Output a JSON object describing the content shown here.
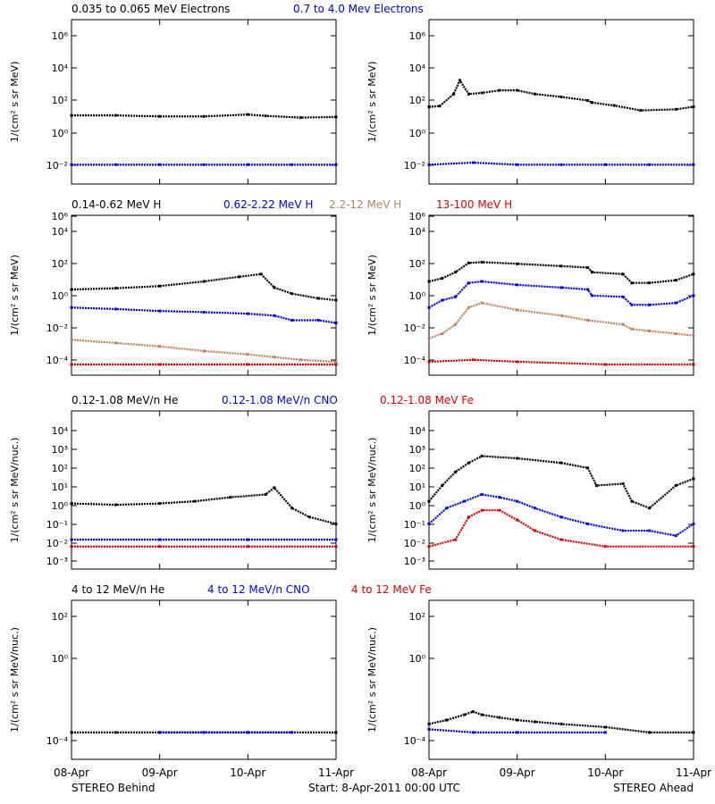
{
  "colors": {
    "black": "#000000",
    "blue": "#0000ee",
    "tan": "#c08060",
    "red": "#e00000"
  },
  "footer": {
    "left": "STEREO Behind",
    "center": "Start:  8-Apr-2011 00:00 UTC",
    "right": "STEREO Ahead",
    "xticks": [
      "08-Apr",
      "09-Apr",
      "10-Apr",
      "11-Apr"
    ]
  },
  "rows": [
    {
      "legend": [
        {
          "text": "0.035 to 0.065 MeV Electrons",
          "color": "black"
        },
        {
          "text": "0.7 to 4.0 Mev Electrons",
          "color": "blue"
        }
      ],
      "ylabel": "1/(cm² s sr MeV)",
      "ticks": [
        "10⁻²",
        "10⁰",
        "10²",
        "10⁴",
        "10⁶"
      ]
    },
    {
      "legend": [
        {
          "text": "0.14-0.62 MeV H",
          "color": "black"
        },
        {
          "text": "0.62-2.22 MeV H",
          "color": "blue"
        },
        {
          "text": "2.2-12 MeV H",
          "color": "tan"
        },
        {
          "text": "13-100 MeV H",
          "color": "red"
        }
      ],
      "ylabel": "1/(cm² s sr MeV)",
      "ticks": [
        "10⁻⁴",
        "10⁻²",
        "10⁰",
        "10²",
        "10⁴",
        "10⁶"
      ]
    },
    {
      "legend": [
        {
          "text": "0.12-1.08 MeV/n He",
          "color": "black"
        },
        {
          "text": "0.12-1.08 MeV/n CNO",
          "color": "blue"
        },
        {
          "text": "0.12-1.08 MeV Fe",
          "color": "red"
        }
      ],
      "ylabel": "1/(cm² s sr MeV/nuc.)",
      "ticks": [
        "10⁻³",
        "10⁻²",
        "10⁻¹",
        "10⁰",
        "10¹",
        "10²",
        "10³",
        "10⁴"
      ]
    },
    {
      "legend": [
        {
          "text": "4 to 12 MeV/n He",
          "color": "black"
        },
        {
          "text": "4 to 12 MeV/n CNO",
          "color": "blue"
        },
        {
          "text": "4 to 12 MeV Fe",
          "color": "red"
        }
      ],
      "ylabel": "1/(cm² s sr MeV/nuc.)",
      "ticks": [
        "10⁻⁴",
        "10⁰",
        "10²"
      ]
    }
  ],
  "chart_data": [
    {
      "type": "scatter",
      "panel": "electrons-behind",
      "xlim": [
        "2011-04-08",
        "2011-04-11"
      ],
      "ylim": [
        0.001,
        10000000
      ],
      "log": true,
      "series": [
        {
          "name": "0.035 to 0.065 MeV Electrons",
          "color": "black",
          "x": [
            0,
            0.5,
            1,
            1.5,
            2,
            2.2,
            2.6,
            3
          ],
          "y": [
            15,
            15,
            13,
            13,
            17,
            14,
            11,
            12
          ]
        },
        {
          "name": "0.7 to 4.0 Mev Electrons",
          "color": "blue",
          "x": [
            0,
            0.5,
            1,
            1.5,
            2,
            2.5,
            3
          ],
          "y": [
            0.015,
            0.015,
            0.015,
            0.015,
            0.015,
            0.015,
            0.015
          ]
        }
      ]
    },
    {
      "type": "scatter",
      "panel": "electrons-ahead",
      "xlim": [
        "2011-04-08",
        "2011-04-11"
      ],
      "ylim": [
        0.001,
        10000000
      ],
      "log": true,
      "series": [
        {
          "name": "0.035 to 0.065 MeV Electrons",
          "color": "black",
          "x": [
            0,
            0.12,
            0.28,
            0.35,
            0.45,
            0.6,
            0.8,
            1,
            1.2,
            1.5,
            1.8,
            1.85,
            2.1,
            2.4,
            2.8,
            3
          ],
          "y": [
            50,
            55,
            300,
            2000,
            300,
            350,
            500,
            500,
            300,
            200,
            120,
            90,
            60,
            30,
            35,
            50
          ]
        },
        {
          "name": "0.7 to 4.0 Mev Electrons",
          "color": "blue",
          "x": [
            0,
            0.5,
            1,
            1.5,
            2,
            2.5,
            3
          ],
          "y": [
            0.015,
            0.02,
            0.015,
            0.015,
            0.015,
            0.015,
            0.015
          ]
        }
      ]
    },
    {
      "type": "scatter",
      "panel": "protons-behind",
      "xlim": [
        "2011-04-08",
        "2011-04-11"
      ],
      "ylim": [
        4e-05,
        1000000
      ],
      "log": true,
      "series": [
        {
          "name": "0.14-0.62 MeV H",
          "color": "black",
          "x": [
            0,
            0.5,
            1,
            1.5,
            1.9,
            2.15,
            2.3,
            2.5,
            2.8,
            3
          ],
          "y": [
            15,
            18,
            25,
            50,
            100,
            150,
            20,
            8,
            4,
            3
          ]
        },
        {
          "name": "0.62-2.22 MeV H",
          "color": "blue",
          "x": [
            0,
            0.5,
            1,
            1.5,
            2,
            2.3,
            2.5,
            2.8,
            3
          ],
          "y": [
            1,
            0.8,
            0.6,
            0.5,
            0.4,
            0.3,
            0.15,
            0.15,
            0.1
          ]
        },
        {
          "name": "2.2-12 MeV H",
          "color": "tan",
          "x": [
            0,
            0.5,
            1,
            1.5,
            2,
            2.3,
            2.6,
            3
          ],
          "y": [
            0.008,
            0.005,
            0.003,
            0.0015,
            0.0009,
            0.0006,
            0.0004,
            0.0003
          ]
        },
        {
          "name": "13-100 MeV H",
          "color": "red",
          "x": [
            0,
            1,
            2,
            3
          ],
          "y": [
            0.0002,
            0.0002,
            0.0002,
            0.0002
          ]
        }
      ]
    },
    {
      "type": "scatter",
      "panel": "protons-ahead",
      "xlim": [
        "2011-04-08",
        "2011-04-11"
      ],
      "ylim": [
        4e-05,
        1000000
      ],
      "log": true,
      "series": [
        {
          "name": "0.14-0.62 MeV H",
          "color": "black",
          "x": [
            0,
            0.15,
            0.3,
            0.45,
            0.6,
            1,
            1.5,
            1.8,
            1.85,
            2.2,
            2.3,
            2.5,
            2.8,
            3
          ],
          "y": [
            50,
            80,
            200,
            800,
            900,
            700,
            500,
            400,
            200,
            150,
            40,
            40,
            60,
            150
          ]
        },
        {
          "name": "0.62-2.22 MeV H",
          "color": "blue",
          "x": [
            0,
            0.15,
            0.3,
            0.45,
            0.6,
            1,
            1.5,
            1.8,
            1.85,
            2.2,
            2.3,
            2.5,
            2.8,
            3
          ],
          "y": [
            1,
            3,
            5,
            40,
            50,
            30,
            20,
            15,
            6,
            5,
            1.5,
            1.5,
            2,
            6
          ]
        },
        {
          "name": "2.2-12 MeV H",
          "color": "tan",
          "x": [
            0,
            0.15,
            0.3,
            0.45,
            0.6,
            1,
            1.5,
            1.8,
            2.2,
            2.3,
            2.5,
            2.8,
            3
          ],
          "y": [
            0.01,
            0.02,
            0.08,
            1,
            2,
            0.7,
            0.3,
            0.15,
            0.08,
            0.04,
            0.03,
            0.02,
            0.015
          ]
        },
        {
          "name": "13-100 MeV H",
          "color": "red",
          "x": [
            0,
            0.5,
            1,
            2,
            3
          ],
          "y": [
            0.0003,
            0.0004,
            0.0003,
            0.0002,
            0.0002
          ]
        }
      ]
    },
    {
      "type": "scatter",
      "panel": "heavy-lo-behind",
      "xlim": [
        "2011-04-08",
        "2011-04-11"
      ],
      "ylim": [
        0.001,
        10000
      ],
      "log": true,
      "series": [
        {
          "name": "0.12-1.08 MeV/n He",
          "color": "black",
          "x": [
            0,
            0.5,
            1,
            1.4,
            1.8,
            2.2,
            2.3,
            2.5,
            2.7,
            3
          ],
          "y": [
            0.8,
            0.7,
            0.8,
            1,
            1.5,
            2,
            4,
            0.5,
            0.2,
            0.1
          ]
        },
        {
          "name": "0.12-1.08 MeV/n CNO",
          "color": "blue",
          "x": [
            0,
            1,
            2,
            3
          ],
          "y": [
            0.02,
            0.02,
            0.02,
            0.02
          ]
        },
        {
          "name": "0.12-1.08 MeV Fe",
          "color": "red",
          "x": [
            0,
            1,
            2,
            3
          ],
          "y": [
            0.01,
            0.01,
            0.01,
            0.01
          ]
        }
      ]
    },
    {
      "type": "scatter",
      "panel": "heavy-lo-ahead",
      "xlim": [
        "2011-04-08",
        "2011-04-11"
      ],
      "ylim": [
        0.001,
        10000
      ],
      "log": true,
      "series": [
        {
          "name": "0.12-1.08 MeV/n He",
          "color": "black",
          "x": [
            0,
            0.15,
            0.3,
            0.45,
            0.6,
            1,
            1.5,
            1.8,
            1.9,
            2.2,
            2.3,
            2.5,
            2.8,
            3
          ],
          "y": [
            1,
            5,
            20,
            50,
            100,
            80,
            50,
            30,
            5,
            6,
            1,
            0.5,
            5,
            10
          ]
        },
        {
          "name": "0.12-1.08 MeV/n CNO",
          "color": "blue",
          "x": [
            0,
            0.2,
            0.4,
            0.6,
            0.8,
            1,
            1.2,
            1.5,
            1.8,
            2.2,
            2.5,
            2.8,
            3
          ],
          "y": [
            0.1,
            0.5,
            1,
            2,
            1.5,
            1,
            0.5,
            0.2,
            0.1,
            0.05,
            0.05,
            0.03,
            0.1
          ]
        },
        {
          "name": "0.12-1.08 MeV Fe",
          "color": "red",
          "x": [
            0,
            0.3,
            0.45,
            0.6,
            0.8,
            1,
            1.2,
            1.5,
            2,
            3
          ],
          "y": [
            0.01,
            0.02,
            0.2,
            0.4,
            0.4,
            0.15,
            0.05,
            0.02,
            0.01,
            0.01
          ]
        }
      ]
    },
    {
      "type": "scatter",
      "panel": "heavy-hi-behind",
      "xlim": [
        "2011-04-08",
        "2011-04-11"
      ],
      "ylim": [
        3e-06,
        3000
      ],
      "log": true,
      "series": [
        {
          "name": "4 to 12 MeV/n He",
          "color": "black",
          "x": [
            0,
            0.5,
            1,
            1.5,
            2,
            2.5,
            3
          ],
          "y": [
            0.0001,
            0.0001,
            0.0001,
            0.0001,
            0.0001,
            0.0001,
            0.0001
          ]
        },
        {
          "name": "4 to 12 MeV/n CNO",
          "color": "blue",
          "x": [
            1,
            1.5,
            2,
            2.5
          ],
          "y": [
            0.0001,
            0.0001,
            0.0001,
            0.0001
          ]
        }
      ]
    },
    {
      "type": "scatter",
      "panel": "heavy-hi-ahead",
      "xlim": [
        "2011-04-08",
        "2011-04-11"
      ],
      "ylim": [
        3e-06,
        3000
      ],
      "log": true,
      "series": [
        {
          "name": "4 to 12 MeV/n He",
          "color": "black",
          "x": [
            0,
            0.2,
            0.4,
            0.5,
            0.6,
            0.8,
            1,
            1.2,
            1.5,
            2,
            2.5,
            3
          ],
          "y": [
            0.0003,
            0.0005,
            0.001,
            0.0015,
            0.001,
            0.0007,
            0.0005,
            0.0004,
            0.0003,
            0.0002,
            0.0001,
            0.0001
          ]
        },
        {
          "name": "4 to 12 MeV/n CNO",
          "color": "blue",
          "x": [
            0,
            0.5,
            1,
            2
          ],
          "y": [
            0.00015,
            0.0001,
            0.0001,
            0.0001
          ]
        }
      ]
    }
  ]
}
